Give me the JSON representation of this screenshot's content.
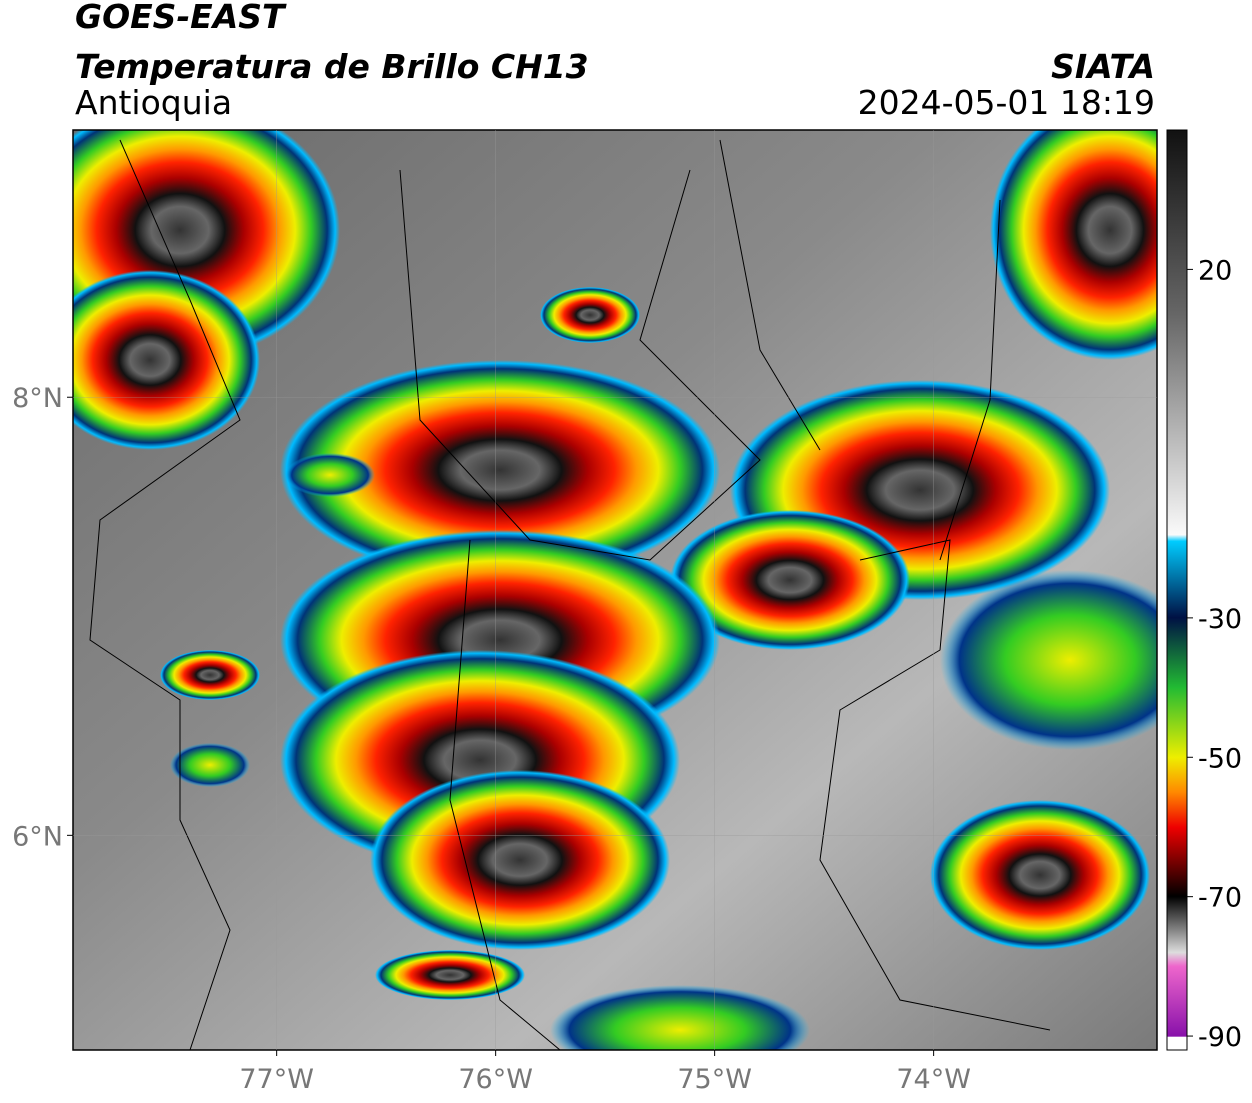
{
  "header": {
    "title": "GOES-EAST",
    "subtitle": "Temperatura de Brillo CH13",
    "region": "Antioquia",
    "source": "SIATA",
    "datetime": "2024-05-01 18:19"
  },
  "map": {
    "xlim": [
      -77.93,
      -72.98
    ],
    "ylim": [
      5.02,
      9.22
    ],
    "xticks": [
      {
        "value": -77,
        "label": "77°W"
      },
      {
        "value": -76,
        "label": "76°W"
      },
      {
        "value": -75,
        "label": "75°W"
      },
      {
        "value": -74,
        "label": "74°W"
      }
    ],
    "yticks": [
      {
        "value": 8,
        "label": "8°N"
      },
      {
        "value": 6,
        "label": "6°N"
      }
    ],
    "grid": true
  },
  "colorbar": {
    "lim": [
      -92,
      40
    ],
    "ticks": [
      20,
      -30,
      -50,
      -70,
      -90
    ]
  }
}
